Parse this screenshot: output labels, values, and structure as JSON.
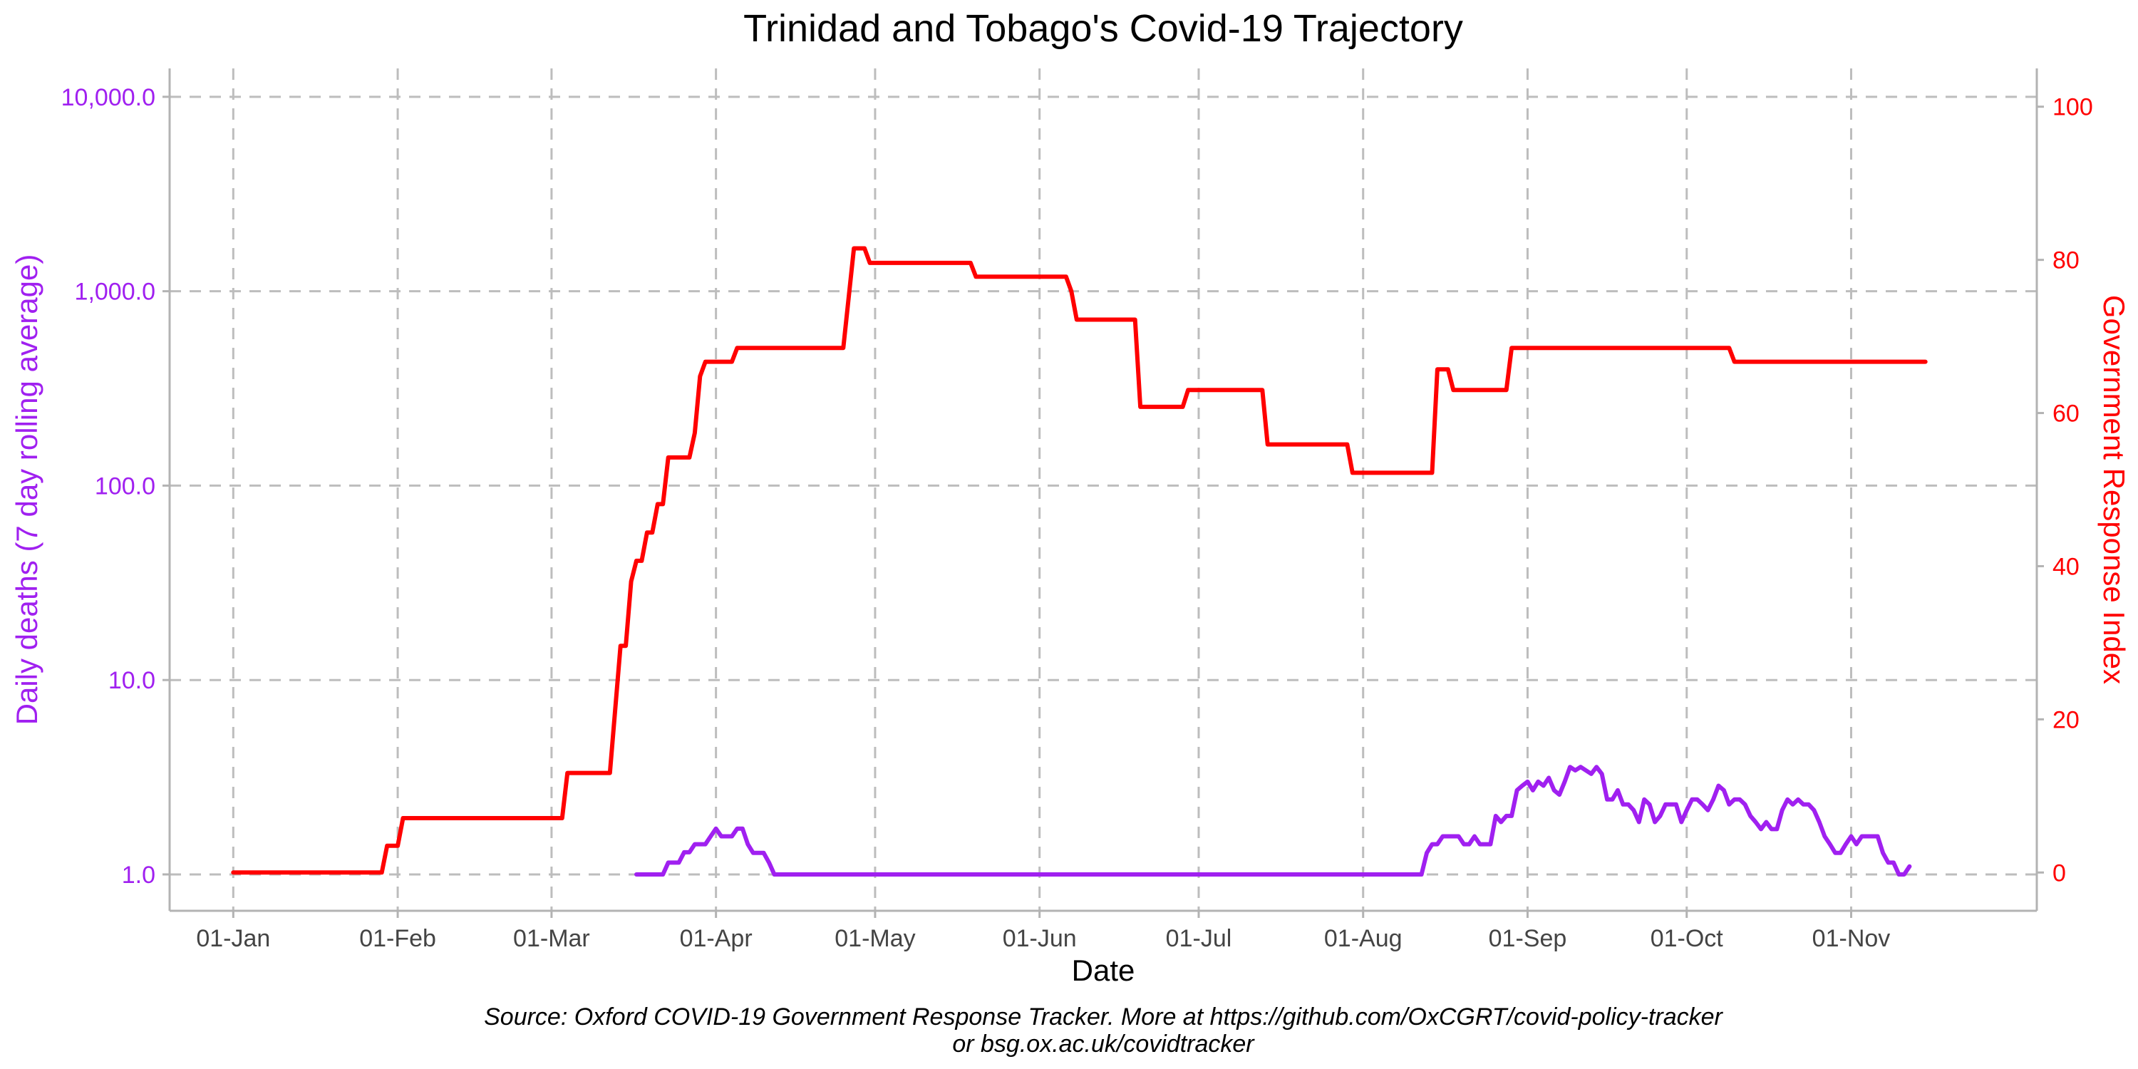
{
  "chart_data": {
    "type": "line",
    "title": "Trinidad and Tobago's Covid-19 Trajectory",
    "xlabel": "Date",
    "ylabel_left": "Daily deaths (7 day rolling average)",
    "ylabel_right": "Government Response Index",
    "y_left_scale": "log",
    "ylim_left": [
      0.65,
      14000
    ],
    "ylim_right": [
      -5,
      105
    ],
    "x_range": [
      "2019-12-20",
      "2020-12-06"
    ],
    "x_ticks": [
      {
        "date": "2020-01-01",
        "label": "01-Jan"
      },
      {
        "date": "2020-02-01",
        "label": "01-Feb"
      },
      {
        "date": "2020-03-01",
        "label": "01-Mar"
      },
      {
        "date": "2020-04-01",
        "label": "01-Apr"
      },
      {
        "date": "2020-05-01",
        "label": "01-May"
      },
      {
        "date": "2020-06-01",
        "label": "01-Jun"
      },
      {
        "date": "2020-07-01",
        "label": "01-Jul"
      },
      {
        "date": "2020-08-01",
        "label": "01-Aug"
      },
      {
        "date": "2020-09-01",
        "label": "01-Sep"
      },
      {
        "date": "2020-10-01",
        "label": "01-Oct"
      },
      {
        "date": "2020-11-01",
        "label": "01-Nov"
      }
    ],
    "y_left_ticks": [
      {
        "value": 1,
        "label": "1.0"
      },
      {
        "value": 10,
        "label": "10.0"
      },
      {
        "value": 100,
        "label": "100.0"
      },
      {
        "value": 1000,
        "label": "1,000.0"
      },
      {
        "value": 10000,
        "label": "10,000.0"
      }
    ],
    "y_right_ticks": [
      {
        "value": 0,
        "label": "0"
      },
      {
        "value": 20,
        "label": "20"
      },
      {
        "value": 40,
        "label": "40"
      },
      {
        "value": 60,
        "label": "60"
      },
      {
        "value": 80,
        "label": "80"
      },
      {
        "value": 100,
        "label": "100"
      }
    ],
    "grid": true,
    "series": [
      {
        "axis": "left",
        "color": "#a020f0",
        "points": [
          [
            "2020-03-17",
            1.0
          ],
          [
            "2020-03-22",
            1.0
          ],
          [
            "2020-03-23",
            1.15
          ],
          [
            "2020-03-25",
            1.15
          ],
          [
            "2020-03-26",
            1.3
          ],
          [
            "2020-03-27",
            1.3
          ],
          [
            "2020-03-28",
            1.43
          ],
          [
            "2020-03-30",
            1.43
          ],
          [
            "2020-03-31",
            1.57
          ],
          [
            "2020-04-01",
            1.72
          ],
          [
            "2020-04-02",
            1.57
          ],
          [
            "2020-04-04",
            1.57
          ],
          [
            "2020-04-05",
            1.72
          ],
          [
            "2020-04-06",
            1.72
          ],
          [
            "2020-04-07",
            1.43
          ],
          [
            "2020-04-08",
            1.29
          ],
          [
            "2020-04-10",
            1.29
          ],
          [
            "2020-04-11",
            1.15
          ],
          [
            "2020-04-12",
            1.0
          ],
          [
            "2020-08-12",
            1.0
          ],
          [
            "2020-08-13",
            1.29
          ],
          [
            "2020-08-14",
            1.43
          ],
          [
            "2020-08-15",
            1.43
          ],
          [
            "2020-08-16",
            1.57
          ],
          [
            "2020-08-19",
            1.57
          ],
          [
            "2020-08-20",
            1.43
          ],
          [
            "2020-08-21",
            1.43
          ],
          [
            "2020-08-22",
            1.57
          ],
          [
            "2020-08-23",
            1.43
          ],
          [
            "2020-08-25",
            1.43
          ],
          [
            "2020-08-26",
            2.0
          ],
          [
            "2020-08-27",
            1.86
          ],
          [
            "2020-08-28",
            2.0
          ],
          [
            "2020-08-29",
            2.0
          ],
          [
            "2020-08-30",
            2.71
          ],
          [
            "2020-08-31",
            2.86
          ],
          [
            "2020-09-01",
            3.0
          ],
          [
            "2020-09-02",
            2.71
          ],
          [
            "2020-09-03",
            3.0
          ],
          [
            "2020-09-04",
            2.86
          ],
          [
            "2020-09-05",
            3.14
          ],
          [
            "2020-09-06",
            2.71
          ],
          [
            "2020-09-07",
            2.57
          ],
          [
            "2020-09-08",
            3.0
          ],
          [
            "2020-09-09",
            3.57
          ],
          [
            "2020-09-10",
            3.43
          ],
          [
            "2020-09-11",
            3.57
          ],
          [
            "2020-09-12",
            3.43
          ],
          [
            "2020-09-13",
            3.29
          ],
          [
            "2020-09-14",
            3.57
          ],
          [
            "2020-09-15",
            3.29
          ],
          [
            "2020-09-16",
            2.43
          ],
          [
            "2020-09-17",
            2.43
          ],
          [
            "2020-09-18",
            2.71
          ],
          [
            "2020-09-19",
            2.29
          ],
          [
            "2020-09-20",
            2.29
          ],
          [
            "2020-09-21",
            2.14
          ],
          [
            "2020-09-22",
            1.86
          ],
          [
            "2020-09-23",
            2.43
          ],
          [
            "2020-09-24",
            2.29
          ],
          [
            "2020-09-25",
            1.86
          ],
          [
            "2020-09-26",
            2.0
          ],
          [
            "2020-09-27",
            2.29
          ],
          [
            "2020-09-28",
            2.29
          ],
          [
            "2020-09-29",
            2.29
          ],
          [
            "2020-09-30",
            1.86
          ],
          [
            "2020-10-01",
            2.14
          ],
          [
            "2020-10-02",
            2.43
          ],
          [
            "2020-10-03",
            2.43
          ],
          [
            "2020-10-04",
            2.29
          ],
          [
            "2020-10-05",
            2.14
          ],
          [
            "2020-10-06",
            2.43
          ],
          [
            "2020-10-07",
            2.86
          ],
          [
            "2020-10-08",
            2.71
          ],
          [
            "2020-10-09",
            2.29
          ],
          [
            "2020-10-10",
            2.43
          ],
          [
            "2020-10-11",
            2.43
          ],
          [
            "2020-10-12",
            2.29
          ],
          [
            "2020-10-13",
            2.0
          ],
          [
            "2020-10-14",
            1.86
          ],
          [
            "2020-10-15",
            1.71
          ],
          [
            "2020-10-16",
            1.86
          ],
          [
            "2020-10-17",
            1.71
          ],
          [
            "2020-10-18",
            1.71
          ],
          [
            "2020-10-19",
            2.14
          ],
          [
            "2020-10-20",
            2.43
          ],
          [
            "2020-10-21",
            2.29
          ],
          [
            "2020-10-22",
            2.43
          ],
          [
            "2020-10-23",
            2.29
          ],
          [
            "2020-10-24",
            2.29
          ],
          [
            "2020-10-25",
            2.14
          ],
          [
            "2020-10-26",
            1.86
          ],
          [
            "2020-10-27",
            1.57
          ],
          [
            "2020-10-28",
            1.43
          ],
          [
            "2020-10-29",
            1.29
          ],
          [
            "2020-10-30",
            1.29
          ],
          [
            "2020-10-31",
            1.43
          ],
          [
            "2020-11-01",
            1.57
          ],
          [
            "2020-11-02",
            1.43
          ],
          [
            "2020-11-03",
            1.57
          ],
          [
            "2020-11-06",
            1.57
          ],
          [
            "2020-11-07",
            1.29
          ],
          [
            "2020-11-08",
            1.15
          ],
          [
            "2020-11-09",
            1.15
          ],
          [
            "2020-11-10",
            1.0
          ],
          [
            "2020-11-11",
            1.0
          ],
          [
            "2020-11-12",
            1.1
          ]
        ]
      },
      {
        "axis": "right",
        "color": "#ff0000",
        "points": [
          [
            "2020-01-01",
            0
          ],
          [
            "2020-01-29",
            0
          ],
          [
            "2020-01-30",
            3.5
          ],
          [
            "2020-01-31",
            3.5
          ],
          [
            "2020-02-01",
            3.5
          ],
          [
            "2020-02-02",
            7.1
          ],
          [
            "2020-02-29",
            7.1
          ],
          [
            "2020-03-03",
            7.1
          ],
          [
            "2020-03-04",
            13
          ],
          [
            "2020-03-12",
            13
          ],
          [
            "2020-03-14",
            29.6
          ],
          [
            "2020-03-15",
            29.6
          ],
          [
            "2020-03-16",
            38
          ],
          [
            "2020-03-17",
            40.7
          ],
          [
            "2020-03-18",
            40.7
          ],
          [
            "2020-03-19",
            44.4
          ],
          [
            "2020-03-20",
            44.4
          ],
          [
            "2020-03-21",
            48.1
          ],
          [
            "2020-03-22",
            48.1
          ],
          [
            "2020-03-23",
            54.2
          ],
          [
            "2020-03-27",
            54.2
          ],
          [
            "2020-03-28",
            57.4
          ],
          [
            "2020-03-29",
            64.8
          ],
          [
            "2020-03-30",
            66.7
          ],
          [
            "2020-04-04",
            66.7
          ],
          [
            "2020-04-05",
            68.5
          ],
          [
            "2020-04-25",
            68.5
          ],
          [
            "2020-04-27",
            81.5
          ],
          [
            "2020-04-29",
            81.5
          ],
          [
            "2020-04-30",
            79.6
          ],
          [
            "2020-05-19",
            79.6
          ],
          [
            "2020-05-20",
            77.8
          ],
          [
            "2020-06-06",
            77.8
          ],
          [
            "2020-06-07",
            75.9
          ],
          [
            "2020-06-08",
            72.2
          ],
          [
            "2020-06-19",
            72.2
          ],
          [
            "2020-06-20",
            60.8
          ],
          [
            "2020-06-28",
            60.8
          ],
          [
            "2020-06-29",
            63
          ],
          [
            "2020-07-13",
            63
          ],
          [
            "2020-07-14",
            55.9
          ],
          [
            "2020-07-29",
            55.9
          ],
          [
            "2020-07-30",
            52.2
          ],
          [
            "2020-08-14",
            52.2
          ],
          [
            "2020-08-15",
            65.7
          ],
          [
            "2020-08-17",
            65.7
          ],
          [
            "2020-08-18",
            63
          ],
          [
            "2020-08-28",
            63
          ],
          [
            "2020-08-29",
            68.5
          ],
          [
            "2020-10-09",
            68.5
          ],
          [
            "2020-10-10",
            66.7
          ],
          [
            "2020-11-15",
            66.7
          ]
        ]
      }
    ]
  },
  "caption": {
    "line1": "Source: Oxford COVID-19 Government Response Tracker. More at https://github.com/OxCGRT/covid-policy-tracker",
    "line2": "or bsg.ox.ac.uk/covidtracker"
  },
  "colors": {
    "left_axis": "#a020f0",
    "right_axis": "#ff0000",
    "grid": "#bdbdbd"
  }
}
